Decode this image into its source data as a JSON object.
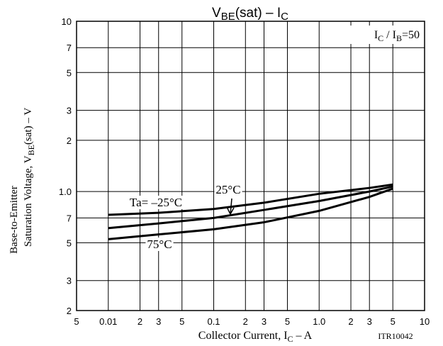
{
  "chart_data": {
    "type": "line",
    "title_parts": [
      "V",
      "BE",
      "(sat)  –  I",
      "C"
    ],
    "x_label_parts": [
      "Collector Current, I",
      "C",
      "  –  A"
    ],
    "y_label_line1": "Base-to-Emitter",
    "y_label_parts": [
      "Saturation Voltage, V",
      "BE",
      "(sat)  –  V"
    ],
    "condition_parts": [
      "I",
      "C",
      " / I",
      "B",
      "=50"
    ],
    "code": "ITR10042",
    "log_x": true,
    "log_y": true,
    "grid": true,
    "xlim": [
      0.005,
      10
    ],
    "ylim": [
      0.2,
      10
    ],
    "xticks": [
      {
        "value": 0.005,
        "label": "5"
      },
      0.01,
      {
        "value": 0.02,
        "label": "2"
      },
      {
        "value": 0.03,
        "label": "3"
      },
      {
        "value": 0.05,
        "label": "5"
      },
      0.1,
      {
        "value": 0.2,
        "label": "2"
      },
      {
        "value": 0.3,
        "label": "3"
      },
      {
        "value": 0.5,
        "label": "5"
      },
      {
        "value": 1,
        "label": "1.0"
      },
      2,
      3,
      5,
      10
    ],
    "yticks": [
      {
        "value": 0.2,
        "label": "2"
      },
      {
        "value": 0.3,
        "label": "3"
      },
      {
        "value": 0.5,
        "label": "5"
      },
      {
        "value": 0.7,
        "label": "7"
      },
      {
        "value": 1,
        "label": "1.0"
      },
      2,
      3,
      5,
      7,
      10
    ],
    "x": [
      0.01,
      0.03,
      0.1,
      0.3,
      1,
      3,
      5
    ],
    "series": [
      {
        "name": "Ta= –25°C",
        "color": "#000000",
        "values": [
          0.73,
          0.75,
          0.79,
          0.86,
          0.97,
          1.05,
          1.1
        ]
      },
      {
        "name": "25°C",
        "color": "#000000",
        "values": [
          0.61,
          0.65,
          0.7,
          0.78,
          0.88,
          1.0,
          1.07
        ]
      },
      {
        "name": "75°C",
        "color": "#000000",
        "values": [
          0.525,
          0.56,
          0.6,
          0.66,
          0.77,
          0.93,
          1.04
        ]
      }
    ]
  }
}
